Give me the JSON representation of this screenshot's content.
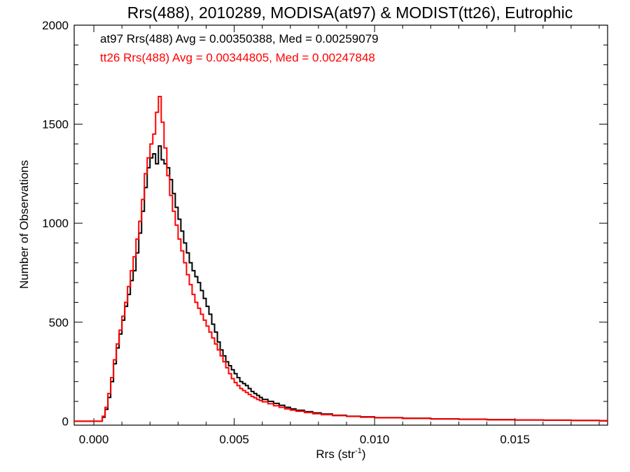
{
  "chart_data": {
    "type": "line",
    "title": "Rrs(488), 2010289, MODISA(at97) & MODIST(tt26), Eutrophic",
    "xlabel": "Rrs (str",
    "xlabel_sup": "-1",
    "xlabel_close": ")",
    "ylabel": "Number of Observations",
    "xlim": [
      -0.0007,
      0.0183
    ],
    "ylim": [
      -20,
      2000
    ],
    "x_ticks": [
      {
        "value": 0.0,
        "label": "0.000"
      },
      {
        "value": 0.005,
        "label": "0.005"
      },
      {
        "value": 0.01,
        "label": "0.010"
      },
      {
        "value": 0.015,
        "label": "0.015"
      }
    ],
    "y_ticks": [
      {
        "value": 0,
        "label": "0"
      },
      {
        "value": 500,
        "label": "500"
      },
      {
        "value": 1000,
        "label": "1000"
      },
      {
        "value": 1500,
        "label": "1500"
      },
      {
        "value": 2000,
        "label": "2000"
      }
    ],
    "legend_placement": "top-left",
    "grid": false,
    "series": [
      {
        "label": "at97 Rrs(488) Avg = 0.00350388, Med = 0.00259079",
        "color": "#000000",
        "step": "histogram",
        "points": [
          [
            -0.0007,
            0
          ],
          [
            0.0002,
            0
          ],
          [
            0.0003,
            20
          ],
          [
            0.0004,
            60
          ],
          [
            0.0005,
            120
          ],
          [
            0.0006,
            200
          ],
          [
            0.0007,
            290
          ],
          [
            0.0008,
            370
          ],
          [
            0.0009,
            440
          ],
          [
            0.001,
            510
          ],
          [
            0.0011,
            580
          ],
          [
            0.0012,
            640
          ],
          [
            0.0013,
            710
          ],
          [
            0.0014,
            760
          ],
          [
            0.0015,
            850
          ],
          [
            0.0016,
            950
          ],
          [
            0.0017,
            1060
          ],
          [
            0.0018,
            1180
          ],
          [
            0.0019,
            1280
          ],
          [
            0.002,
            1330
          ],
          [
            0.0021,
            1350
          ],
          [
            0.0022,
            1300
          ],
          [
            0.0023,
            1390
          ],
          [
            0.0024,
            1320
          ],
          [
            0.0025,
            1300
          ],
          [
            0.0026,
            1280
          ],
          [
            0.0027,
            1220
          ],
          [
            0.0028,
            1150
          ],
          [
            0.0029,
            1080
          ],
          [
            0.003,
            1020
          ],
          [
            0.0031,
            960
          ],
          [
            0.0032,
            900
          ],
          [
            0.0033,
            850
          ],
          [
            0.0034,
            800
          ],
          [
            0.0035,
            760
          ],
          [
            0.0036,
            730
          ],
          [
            0.0037,
            700
          ],
          [
            0.0038,
            660
          ],
          [
            0.0039,
            620
          ],
          [
            0.004,
            580
          ],
          [
            0.0041,
            540
          ],
          [
            0.0042,
            490
          ],
          [
            0.0043,
            450
          ],
          [
            0.0044,
            400
          ],
          [
            0.0045,
            360
          ],
          [
            0.0046,
            330
          ],
          [
            0.0047,
            300
          ],
          [
            0.0048,
            280
          ],
          [
            0.0049,
            260
          ],
          [
            0.005,
            240
          ],
          [
            0.0051,
            220
          ],
          [
            0.0052,
            200
          ],
          [
            0.0053,
            190
          ],
          [
            0.0054,
            180
          ],
          [
            0.0055,
            165
          ],
          [
            0.0056,
            150
          ],
          [
            0.0057,
            140
          ],
          [
            0.0058,
            130
          ],
          [
            0.0059,
            120
          ],
          [
            0.006,
            110
          ],
          [
            0.0062,
            100
          ],
          [
            0.0064,
            90
          ],
          [
            0.0066,
            80
          ],
          [
            0.0068,
            70
          ],
          [
            0.007,
            62
          ],
          [
            0.0072,
            55
          ],
          [
            0.0075,
            48
          ],
          [
            0.0078,
            42
          ],
          [
            0.0081,
            36
          ],
          [
            0.0085,
            30
          ],
          [
            0.009,
            25
          ],
          [
            0.0095,
            22
          ],
          [
            0.01,
            18
          ],
          [
            0.011,
            15
          ],
          [
            0.012,
            12
          ],
          [
            0.013,
            10
          ],
          [
            0.014,
            8
          ],
          [
            0.015,
            6
          ],
          [
            0.016,
            5
          ],
          [
            0.017,
            4
          ],
          [
            0.018,
            3
          ],
          [
            0.0183,
            3
          ]
        ]
      },
      {
        "label": "tt26 Rrs(488) Avg = 0.00344805, Med = 0.00247848",
        "color": "#ff0000",
        "step": "histogram",
        "points": [
          [
            -0.0007,
            0
          ],
          [
            0.0002,
            0
          ],
          [
            0.0003,
            25
          ],
          [
            0.0004,
            70
          ],
          [
            0.0005,
            140
          ],
          [
            0.0006,
            220
          ],
          [
            0.0007,
            310
          ],
          [
            0.0008,
            390
          ],
          [
            0.0009,
            460
          ],
          [
            0.001,
            530
          ],
          [
            0.0011,
            600
          ],
          [
            0.0012,
            680
          ],
          [
            0.0013,
            760
          ],
          [
            0.0014,
            830
          ],
          [
            0.0015,
            920
          ],
          [
            0.0016,
            1010
          ],
          [
            0.0017,
            1120
          ],
          [
            0.0018,
            1250
          ],
          [
            0.0019,
            1330
          ],
          [
            0.002,
            1400
          ],
          [
            0.0021,
            1450
          ],
          [
            0.0022,
            1560
          ],
          [
            0.0023,
            1640
          ],
          [
            0.0024,
            1510
          ],
          [
            0.0025,
            1380
          ],
          [
            0.0026,
            1240
          ],
          [
            0.0027,
            1140
          ],
          [
            0.0028,
            1060
          ],
          [
            0.0029,
            990
          ],
          [
            0.003,
            920
          ],
          [
            0.0031,
            860
          ],
          [
            0.0032,
            800
          ],
          [
            0.0033,
            740
          ],
          [
            0.0034,
            690
          ],
          [
            0.0035,
            640
          ],
          [
            0.0036,
            600
          ],
          [
            0.0037,
            570
          ],
          [
            0.0038,
            540
          ],
          [
            0.0039,
            510
          ],
          [
            0.004,
            480
          ],
          [
            0.0041,
            450
          ],
          [
            0.0042,
            420
          ],
          [
            0.0043,
            390
          ],
          [
            0.0044,
            360
          ],
          [
            0.0045,
            330
          ],
          [
            0.0046,
            300
          ],
          [
            0.0047,
            270
          ],
          [
            0.0048,
            240
          ],
          [
            0.0049,
            215
          ],
          [
            0.005,
            195
          ],
          [
            0.0051,
            180
          ],
          [
            0.0052,
            165
          ],
          [
            0.0053,
            155
          ],
          [
            0.0054,
            145
          ],
          [
            0.0055,
            135
          ],
          [
            0.0056,
            125
          ],
          [
            0.0057,
            118
          ],
          [
            0.0058,
            110
          ],
          [
            0.0059,
            104
          ],
          [
            0.006,
            98
          ],
          [
            0.0062,
            88
          ],
          [
            0.0064,
            78
          ],
          [
            0.0066,
            70
          ],
          [
            0.0068,
            62
          ],
          [
            0.007,
            56
          ],
          [
            0.0072,
            50
          ],
          [
            0.0075,
            44
          ],
          [
            0.0078,
            38
          ],
          [
            0.0081,
            33
          ],
          [
            0.0085,
            28
          ],
          [
            0.009,
            24
          ],
          [
            0.0095,
            20
          ],
          [
            0.01,
            17
          ],
          [
            0.011,
            14
          ],
          [
            0.012,
            11
          ],
          [
            0.013,
            9
          ],
          [
            0.014,
            7
          ],
          [
            0.015,
            6
          ],
          [
            0.016,
            5
          ],
          [
            0.017,
            4
          ],
          [
            0.018,
            3
          ],
          [
            0.0183,
            3
          ]
        ]
      }
    ]
  }
}
